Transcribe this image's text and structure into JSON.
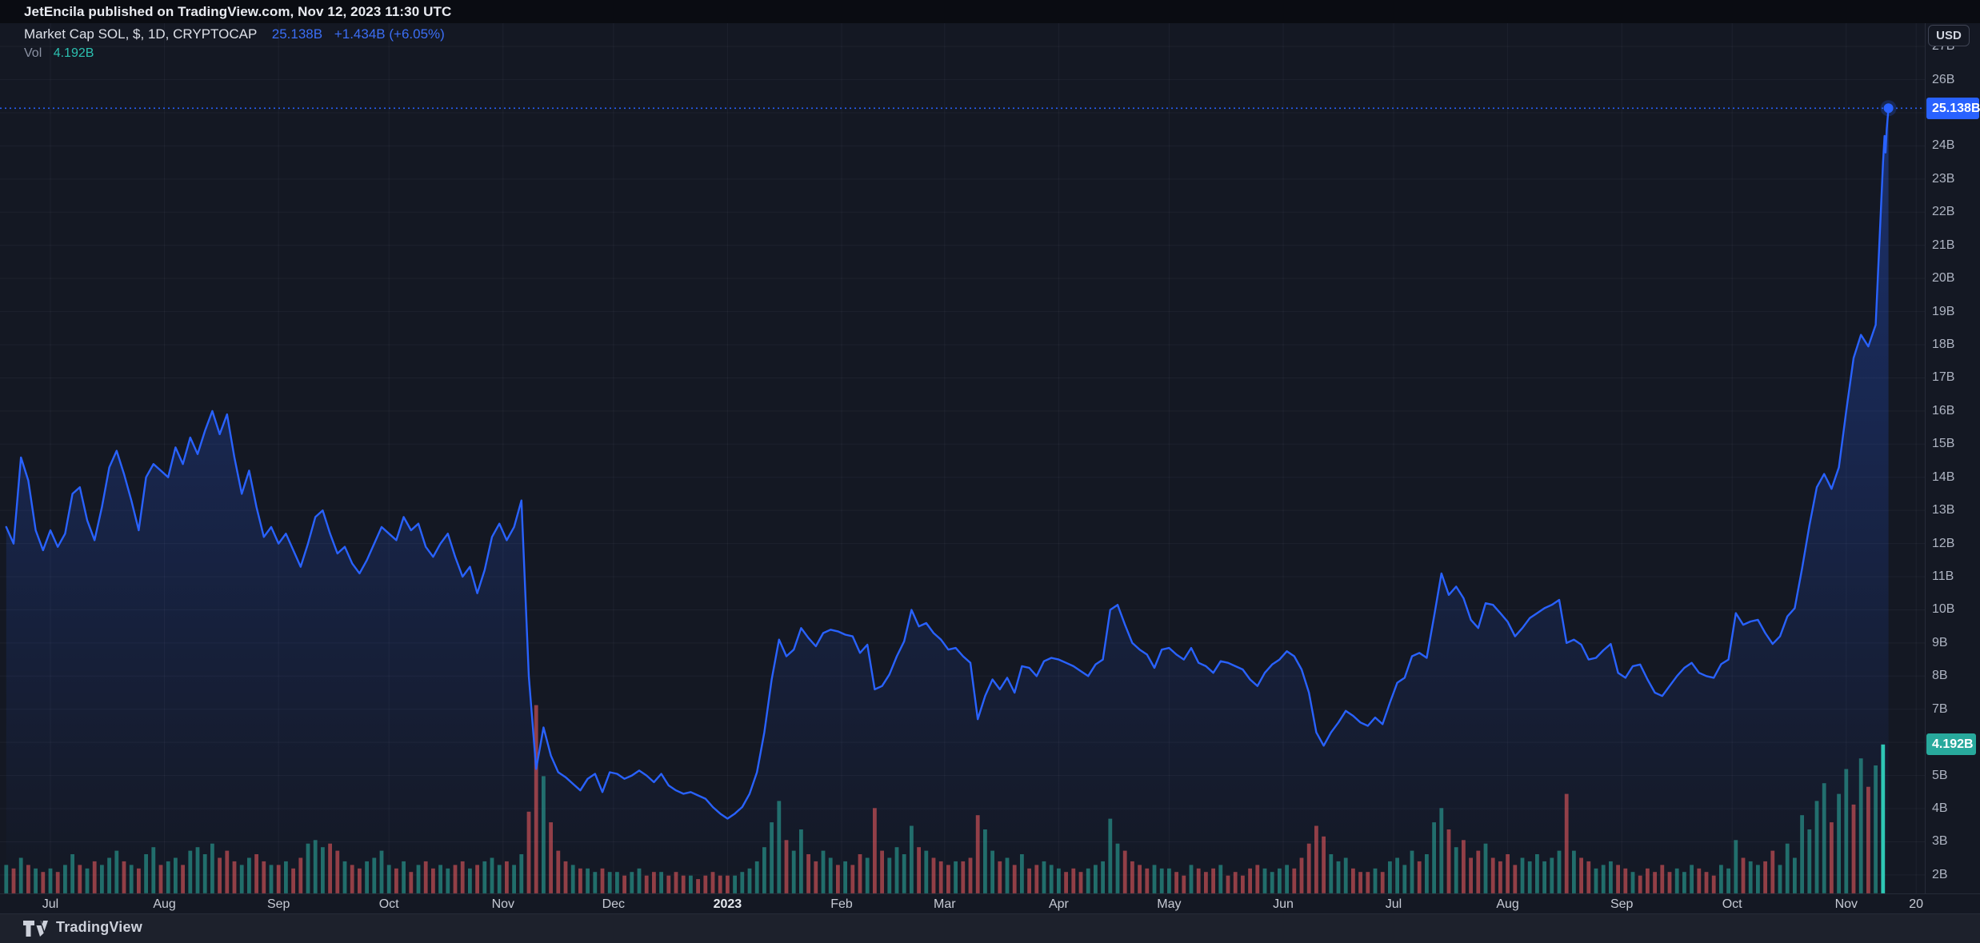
{
  "header": {
    "publish_text": "JetEncila published on TradingView.com, Nov 12, 2023 11:30 UTC"
  },
  "legend": {
    "title": "Market Cap SOL, $, 1D, CRYPTOCAP",
    "value": "25.138B",
    "change": "+1.434B (+6.05%)",
    "vol_label": "Vol",
    "vol_value": "4.192B"
  },
  "axis": {
    "currency_button": "USD",
    "price_badge": "25.138B",
    "volume_badge": "4.192B",
    "last_time_label": "20"
  },
  "footer": {
    "brand": "TradingView"
  },
  "colors": {
    "accent_blue": "#2962ff",
    "volume_up": "#2aa398",
    "volume_down": "#e0575c",
    "volume_last": "#2ec7b5",
    "badge_volume": "#28a99c",
    "background": "#141823"
  },
  "chart_data": {
    "type": "area",
    "title": "Market Cap SOL, $, 1D, CRYPTOCAP",
    "ylabel": "USD",
    "unit": "B",
    "ylim": [
      2,
      27
    ],
    "grid": true,
    "legend_position": "top-left",
    "current_value_b": 25.138,
    "current_change_b": 1.434,
    "current_change_pct": 6.05,
    "current_volume_b": 4.192,
    "price_line_value": 25.138,
    "time_ticks": [
      [
        "Jul",
        "2022-07-01"
      ],
      [
        "Aug",
        "2022-08-01"
      ],
      [
        "Sep",
        "2022-09-01"
      ],
      [
        "Oct",
        "2022-10-01"
      ],
      [
        "Nov",
        "2022-11-01"
      ],
      [
        "Dec",
        "2022-12-01"
      ],
      [
        "2023",
        "2023-01-01"
      ],
      [
        "Feb",
        "2023-02-01"
      ],
      [
        "Mar",
        "2023-03-01"
      ],
      [
        "Apr",
        "2023-04-01"
      ],
      [
        "May",
        "2023-05-01"
      ],
      [
        "Jun",
        "2023-06-01"
      ],
      [
        "Jul",
        "2023-07-01"
      ],
      [
        "Aug",
        "2023-08-01"
      ],
      [
        "Sep",
        "2023-09-01"
      ],
      [
        "Oct",
        "2023-10-01"
      ],
      [
        "Nov",
        "2023-11-01"
      ],
      [
        "20",
        "2023-11-20"
      ]
    ],
    "series_name": "Market Cap SOL",
    "series_start": "2022-06-19",
    "step_days": 2,
    "marketcap_b": [
      12.5,
      12.0,
      14.6,
      13.9,
      12.4,
      11.8,
      12.4,
      11.9,
      12.3,
      13.5,
      13.7,
      12.7,
      12.1,
      13.1,
      14.3,
      14.8,
      14.1,
      13.3,
      12.4,
      14.0,
      14.4,
      14.2,
      14.0,
      14.9,
      14.4,
      15.2,
      14.7,
      15.4,
      16.0,
      15.3,
      15.9,
      14.6,
      13.5,
      14.2,
      13.1,
      12.2,
      12.5,
      12.0,
      12.3,
      11.8,
      11.3,
      12.0,
      12.8,
      13.0,
      12.3,
      11.7,
      11.9,
      11.4,
      11.1,
      11.5,
      12.0,
      12.5,
      12.3,
      12.1,
      12.8,
      12.4,
      12.6,
      11.9,
      11.6,
      12.0,
      12.3,
      11.6,
      11.0,
      11.3,
      10.5,
      11.2,
      12.2,
      12.6,
      12.1,
      12.5,
      13.3,
      8.0,
      5.2,
      6.45,
      5.6,
      5.1,
      4.95,
      4.75,
      4.55,
      4.9,
      5.05,
      4.5,
      5.1,
      5.05,
      4.9,
      5.0,
      5.15,
      5.0,
      4.8,
      5.05,
      4.7,
      4.55,
      4.45,
      4.5,
      4.4,
      4.3,
      4.05,
      3.85,
      3.7,
      3.85,
      4.05,
      4.45,
      5.1,
      6.3,
      7.9,
      9.1,
      8.6,
      8.8,
      9.45,
      9.15,
      8.9,
      9.3,
      9.4,
      9.35,
      9.25,
      9.2,
      8.7,
      8.95,
      7.6,
      7.7,
      8.05,
      8.6,
      9.05,
      10.0,
      9.5,
      9.6,
      9.3,
      9.1,
      8.8,
      8.85,
      8.6,
      8.4,
      6.7,
      7.4,
      7.9,
      7.6,
      7.95,
      7.5,
      8.3,
      8.25,
      8.0,
      8.45,
      8.55,
      8.5,
      8.4,
      8.3,
      8.15,
      8.0,
      8.35,
      8.5,
      10.0,
      10.15,
      9.55,
      9.0,
      8.8,
      8.65,
      8.25,
      8.8,
      8.85,
      8.65,
      8.5,
      8.85,
      8.4,
      8.3,
      8.1,
      8.45,
      8.4,
      8.3,
      8.2,
      7.9,
      7.7,
      8.1,
      8.35,
      8.5,
      8.75,
      8.6,
      8.2,
      7.5,
      6.3,
      5.9,
      6.3,
      6.6,
      6.95,
      6.8,
      6.6,
      6.5,
      6.75,
      6.55,
      7.2,
      7.8,
      7.95,
      8.6,
      8.7,
      8.55,
      9.8,
      11.1,
      10.45,
      10.7,
      10.35,
      9.7,
      9.45,
      10.2,
      10.15,
      9.9,
      9.64,
      9.2,
      9.45,
      9.75,
      9.9,
      10.05,
      10.15,
      10.3,
      9.0,
      9.1,
      8.95,
      8.5,
      8.55,
      8.78,
      8.97,
      8.1,
      7.95,
      8.3,
      8.35,
      7.9,
      7.5,
      7.4,
      7.7,
      8.0,
      8.25,
      8.4,
      8.1,
      8.0,
      7.95,
      8.36,
      8.5,
      9.9,
      9.55,
      9.65,
      9.7,
      9.3,
      8.97,
      9.2,
      9.8,
      10.05,
      11.25,
      12.55,
      13.7,
      14.1,
      13.65,
      14.3,
      16.0,
      17.6,
      18.3,
      17.95,
      18.6,
      23.5
    ],
    "tail_points": [
      [
        "2023-11-11T10:00",
        24.3
      ],
      [
        "2023-11-11T16:00",
        23.8
      ],
      [
        "2023-11-12T00:00",
        24.5
      ],
      [
        "2023-11-12T11:30",
        25.138
      ]
    ],
    "volume_series_name": "Vol",
    "volume_b": [
      0.8,
      -0.7,
      1.0,
      -0.8,
      0.7,
      -0.6,
      0.7,
      -0.6,
      0.8,
      1.1,
      -0.8,
      0.7,
      -0.9,
      0.8,
      1.0,
      1.2,
      -0.9,
      0.8,
      -0.7,
      1.1,
      1.3,
      -0.8,
      0.9,
      1.0,
      -0.8,
      1.2,
      1.3,
      1.1,
      1.4,
      -1.0,
      -1.2,
      -0.9,
      0.8,
      1.0,
      -1.1,
      -0.9,
      0.8,
      -0.8,
      0.9,
      -0.7,
      -1.0,
      1.4,
      1.5,
      1.3,
      -1.4,
      -1.2,
      0.9,
      -0.8,
      -0.7,
      0.9,
      1.0,
      1.2,
      0.8,
      -0.7,
      0.9,
      -0.6,
      0.8,
      -0.9,
      -0.7,
      0.8,
      0.7,
      -0.8,
      -0.9,
      0.7,
      -0.8,
      0.9,
      1.0,
      0.8,
      -0.9,
      0.8,
      1.1,
      -2.3,
      -5.3,
      3.3,
      -2.0,
      -1.2,
      -0.9,
      0.8,
      -0.7,
      0.7,
      0.6,
      -0.7,
      0.6,
      0.6,
      -0.5,
      0.6,
      0.7,
      -0.5,
      -0.6,
      0.6,
      -0.5,
      -0.6,
      -0.5,
      0.5,
      -0.4,
      -0.5,
      -0.6,
      -0.5,
      -0.5,
      0.5,
      0.6,
      0.7,
      0.9,
      1.3,
      2.0,
      2.6,
      -1.5,
      1.2,
      1.8,
      -1.1,
      -0.9,
      1.2,
      1.0,
      -0.8,
      0.9,
      -0.8,
      -1.1,
      1.0,
      -2.4,
      -1.2,
      1.0,
      1.3,
      1.1,
      1.9,
      -1.3,
      1.2,
      -1.0,
      -0.9,
      -0.8,
      0.9,
      -0.9,
      -1.0,
      -2.2,
      1.8,
      1.2,
      -0.9,
      1.0,
      -0.8,
      1.1,
      -0.7,
      -0.8,
      0.9,
      0.8,
      0.7,
      -0.6,
      -0.7,
      -0.6,
      0.7,
      0.8,
      0.9,
      2.1,
      1.4,
      -1.2,
      -0.9,
      -0.8,
      -0.7,
      0.8,
      0.7,
      0.7,
      -0.6,
      -0.5,
      0.8,
      -0.7,
      -0.6,
      -0.7,
      0.8,
      -0.5,
      -0.6,
      -0.5,
      -0.7,
      -0.8,
      0.7,
      0.6,
      0.7,
      0.8,
      -0.7,
      -1.0,
      -1.4,
      -1.9,
      -1.6,
      1.1,
      0.9,
      1.0,
      -0.7,
      -0.6,
      -0.6,
      0.7,
      -0.6,
      0.9,
      1.0,
      0.8,
      1.2,
      -0.9,
      1.1,
      2.0,
      2.4,
      -1.8,
      1.3,
      -1.5,
      -1.0,
      -1.2,
      1.4,
      -1.0,
      -0.9,
      -1.1,
      -0.8,
      1.0,
      0.9,
      1.1,
      0.9,
      1.0,
      1.2,
      -2.8,
      1.2,
      -1.0,
      -0.9,
      0.7,
      0.8,
      0.9,
      -0.8,
      -0.7,
      0.6,
      -0.5,
      -0.7,
      -0.6,
      -0.8,
      -0.6,
      0.7,
      0.6,
      0.8,
      -0.7,
      -0.6,
      -0.5,
      0.8,
      0.7,
      1.5,
      -1.0,
      0.9,
      0.8,
      -0.9,
      -1.2,
      0.8,
      1.4,
      1.0,
      2.2,
      1.8,
      2.6,
      3.1,
      -2.0,
      2.8,
      3.5,
      -2.5,
      3.8,
      -3.0,
      3.6,
      4.192
    ]
  }
}
